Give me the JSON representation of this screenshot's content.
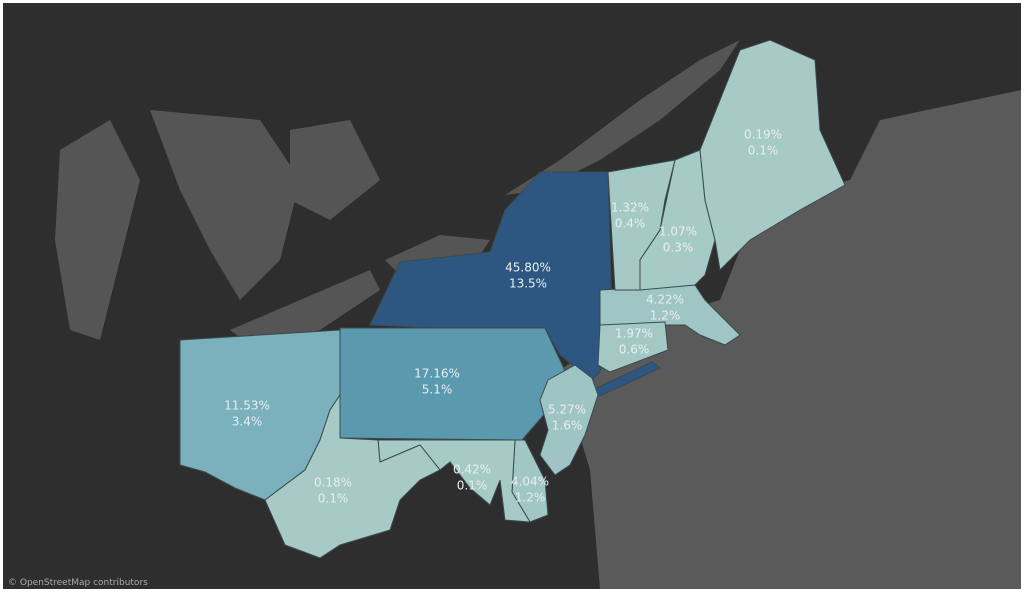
{
  "regions": [
    {
      "share": "45.80%",
      "pct": "13.5%",
      "color": "#2d5781"
    },
    {
      "share": "17.16%",
      "pct": "5.1%",
      "color": "#5b99ae"
    },
    {
      "share": "11.53%",
      "pct": "3.4%",
      "color": "#7ab1bc"
    },
    {
      "share": "5.27%",
      "pct": "1.6%",
      "color": "#9ec5c4"
    },
    {
      "share": "4.22%",
      "pct": "1.2%",
      "color": "#9fc6c4"
    },
    {
      "share": "4.04%",
      "pct": "1.2%",
      "color": "#a0c7c4"
    },
    {
      "share": "1.97%",
      "pct": "0.6%",
      "color": "#a4c9c5"
    },
    {
      "share": "1.32%",
      "pct": "0.4%",
      "color": "#a5c9c5"
    },
    {
      "share": "1.07%",
      "pct": "0.3%",
      "color": "#a6cac6"
    },
    {
      "share": "0.42%",
      "pct": "0.1%",
      "color": "#a6cac6"
    },
    {
      "share": "0.19%",
      "pct": "0.1%",
      "color": "#a7cac6"
    },
    {
      "share": "0.18%",
      "pct": "0.1%",
      "color": "#a7cac6"
    }
  ],
  "attribution": "© OpenStreetMap contributors"
}
